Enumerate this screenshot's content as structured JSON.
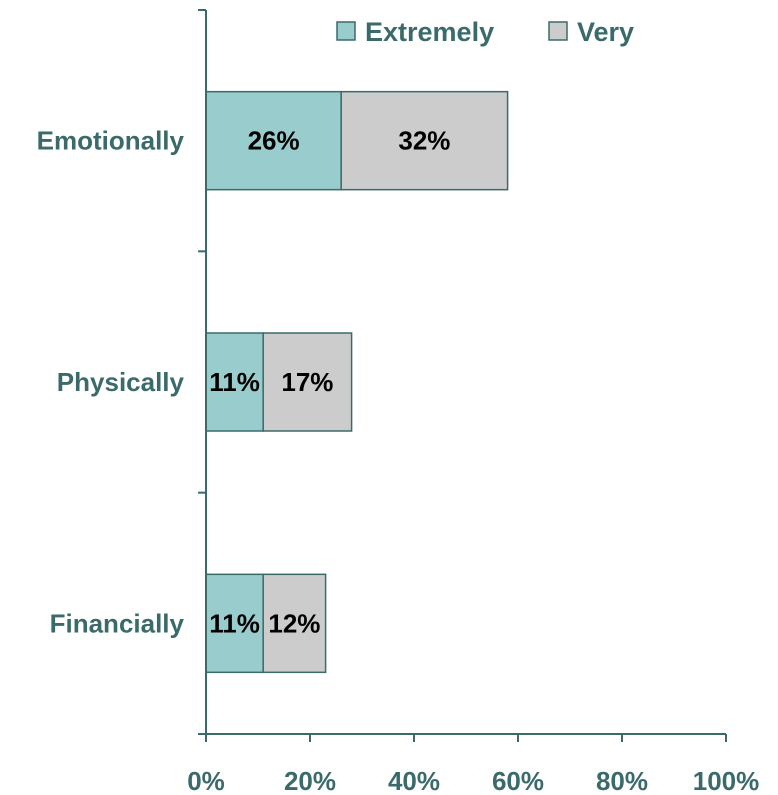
{
  "chart_data": {
    "type": "bar",
    "orientation": "horizontal",
    "stacked": true,
    "categories": [
      "Emotionally",
      "Physically",
      "Financially"
    ],
    "series": [
      {
        "name": "Extremely",
        "values": [
          26,
          11,
          11
        ],
        "color": "#99cccc"
      },
      {
        "name": "Very",
        "values": [
          32,
          17,
          12
        ],
        "color": "#cccccc"
      }
    ],
    "data_labels": [
      [
        "26%",
        "11%",
        "11%"
      ],
      [
        "32%",
        "17%",
        "12%"
      ]
    ],
    "xlim": [
      0,
      100
    ],
    "x_ticks": [
      "0%",
      "20%",
      "40%",
      "60%",
      "80%",
      "100%"
    ],
    "legend_position": "top-right",
    "grid": false,
    "title": "",
    "xlabel": "",
    "ylabel": ""
  }
}
